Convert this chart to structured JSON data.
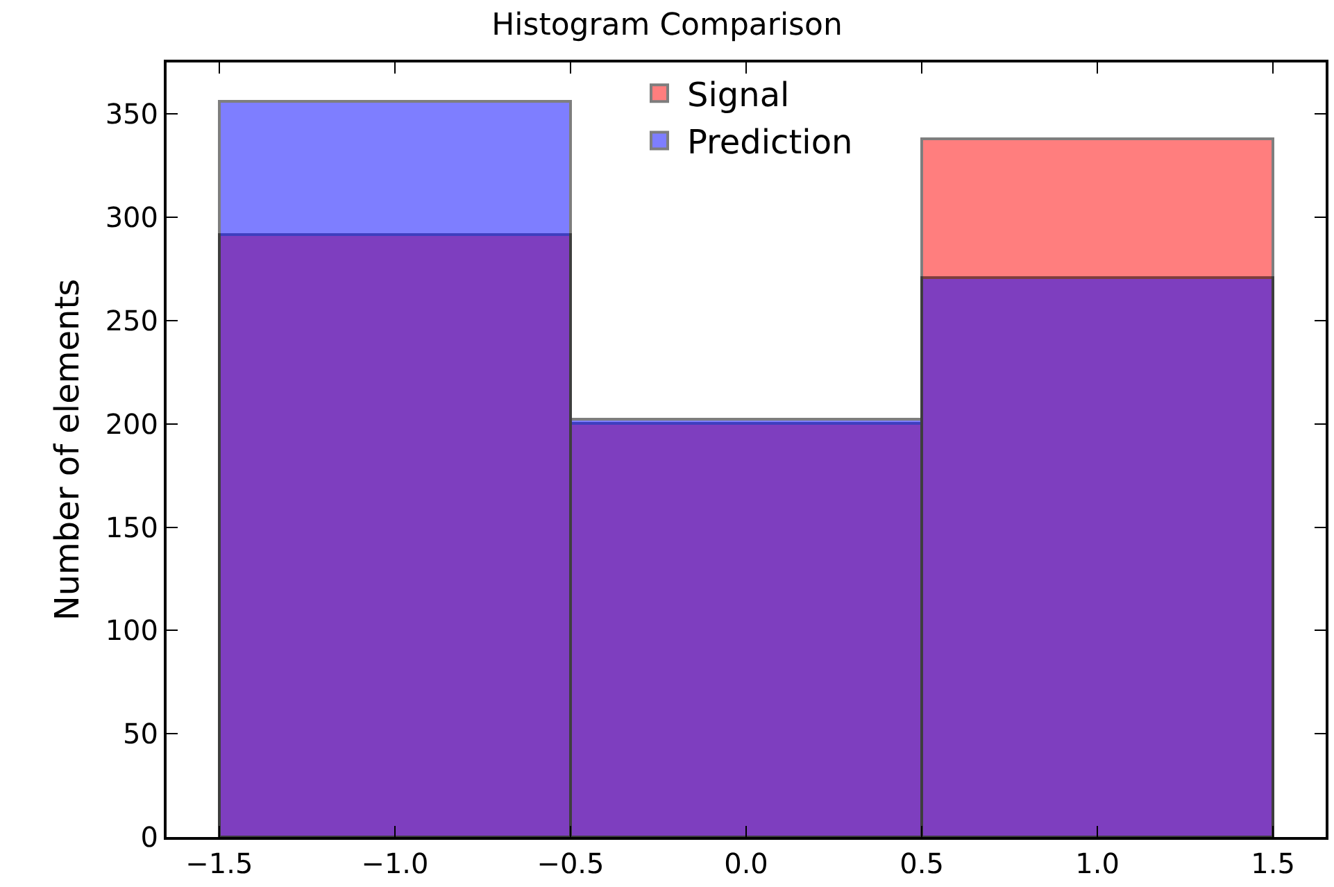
{
  "chart_data": {
    "type": "histogram",
    "title": "Histogram Comparison",
    "ylabel": "Number of elements",
    "bins": [
      -1.5,
      -0.5,
      0.5,
      1.5
    ],
    "series": [
      {
        "name": "Signal",
        "color": "#ff0000",
        "values": [
          292,
          200,
          338
        ]
      },
      {
        "name": "Prediction",
        "color": "#0000ff",
        "values": [
          356,
          202,
          271
        ]
      }
    ],
    "xlim": [
      -1.65,
      1.65
    ],
    "xticks": [
      {
        "value": -1.5,
        "label": "−1.5"
      },
      {
        "value": -1.0,
        "label": "−1.0"
      },
      {
        "value": -0.5,
        "label": "−0.5"
      },
      {
        "value": 0,
        "label": "0.0"
      },
      {
        "value": 0.5,
        "label": "0.5"
      },
      {
        "value": 1.0,
        "label": "1.0"
      },
      {
        "value": 1.5,
        "label": "1.5"
      }
    ],
    "ylim": [
      0,
      375
    ],
    "yticks": [
      0,
      50,
      100,
      150,
      200,
      250,
      300,
      350
    ],
    "grid": false,
    "legend": "top"
  }
}
